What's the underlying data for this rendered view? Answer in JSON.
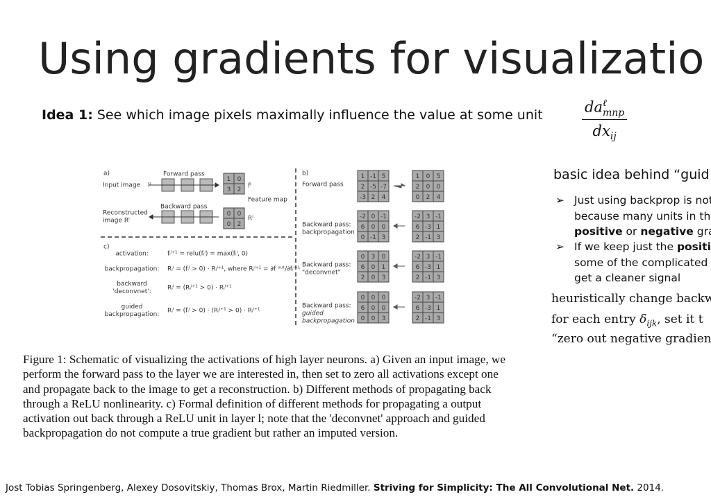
{
  "title": "Using gradients for visualizatio",
  "idea": {
    "label": "Idea 1:",
    "text": "See which image pixels maximally influence the value at some unit",
    "formula": {
      "numerator": {
        "base": "da",
        "sup": "ℓ",
        "sub": "mnp"
      },
      "denominator": {
        "base": "dx",
        "sub": "ij"
      }
    }
  },
  "figure": {
    "a": {
      "label": "a)",
      "forward": "Forward pass",
      "input": "Input image",
      "input_symbol": "Iˡ",
      "feature_symbol": "fˡ",
      "feature_map_label": "Feature map",
      "feature_map": [
        [
          1,
          0
        ],
        [
          3,
          2
        ]
      ],
      "backward": "Backward pass",
      "reconstructed": [
        "Reconstructed",
        "image Rˡ"
      ],
      "recon_symbol": "Rˡ",
      "reconstruction": [
        [
          0,
          0
        ],
        [
          0,
          2
        ]
      ]
    },
    "b": {
      "label": "b)",
      "rows": [
        {
          "label": [
            "Forward pass"
          ],
          "input": [
            [
              1,
              -1,
              5
            ],
            [
              2,
              -5,
              -7
            ],
            [
              -3,
              2,
              4
            ]
          ],
          "output": [
            [
              1,
              0,
              5
            ],
            [
              2,
              0,
              0
            ],
            [
              0,
              2,
              4
            ]
          ]
        },
        {
          "label": [
            "Backward pass:",
            "backpropagation"
          ],
          "input": [
            [
              -2,
              0,
              -1
            ],
            [
              6,
              0,
              0
            ],
            [
              0,
              -1,
              3
            ]
          ],
          "output": [
            [
              -2,
              3,
              -1
            ],
            [
              6,
              -3,
              1
            ],
            [
              2,
              -1,
              3
            ]
          ]
        },
        {
          "label": [
            "Backward pass:",
            "\"deconvnet\""
          ],
          "input": [
            [
              0,
              3,
              0
            ],
            [
              6,
              0,
              1
            ],
            [
              2,
              0,
              3
            ]
          ],
          "output": [
            [
              -2,
              3,
              -1
            ],
            [
              6,
              -3,
              1
            ],
            [
              2,
              -1,
              3
            ]
          ]
        },
        {
          "label": [
            "Backward pass:",
            "guided",
            "backpropagation"
          ],
          "input": [
            [
              0,
              0,
              0
            ],
            [
              6,
              0,
              0
            ],
            [
              0,
              0,
              3
            ]
          ],
          "output": [
            [
              -2,
              3,
              -1
            ],
            [
              6,
              -3,
              1
            ],
            [
              2,
              -1,
              3
            ]
          ]
        }
      ]
    },
    "c": {
      "label": "c)",
      "rows": [
        {
          "label": [
            "activation:"
          ],
          "formula": "fᵢˡ⁺¹ = relu(fᵢˡ) = max(fᵢˡ, 0)"
        },
        {
          "label": [
            "backpropagation:"
          ],
          "formula": "Rᵢˡ = (fᵢˡ > 0) · Rᵢˡ⁺¹, where Rᵢˡ⁺¹ = ∂f ᵒᵘᵗ/∂fᵢˡ⁺¹"
        },
        {
          "label": [
            "backward",
            "'deconvnet':"
          ],
          "formula": "Rᵢˡ = (Rᵢˡ⁺¹ > 0) · Rᵢˡ⁺¹"
        },
        {
          "label": [
            "guided",
            "backpropagation:"
          ],
          "formula": "Rᵢˡ = (fᵢˡ > 0) · (Rᵢˡ⁺¹ > 0) · Rᵢˡ⁺¹"
        }
      ]
    }
  },
  "caption": [
    "Figure 1: Schematic of visualizing the activations of high layer neurons. a) Given an input image, we",
    "perform the forward pass to the layer we are interested in, then set to zero all activations except one",
    "and propagate back to the image to get a reconstruction. b) Different methods of propagating back",
    "through a ReLU nonlinearity.  c) Formal definition of different methods for propagating a output",
    "activation out back through a ReLU unit in layer l; note that the 'deconvnet' approach and guided",
    "backpropagation do not compute a true gradient but rather an imputed version."
  ],
  "side": {
    "heading": "basic idea behind “guid",
    "bullets": [
      [
        "Just using backprop is not",
        "because many units in the",
        [
          {
            "text": "positive",
            "bold": true
          },
          " or ",
          {
            "text": "negative",
            "bold": true
          },
          " gradie"
        ]
      ],
      [
        [
          "If we keep just the ",
          {
            "text": "positive",
            "bold": true
          }
        ],
        "some of the complicated n",
        "get a cleaner signal"
      ]
    ],
    "notes": [
      "heuristically change backw",
      [
        "for each entry ",
        {
          "text": "δ",
          "sub": "ijk",
          "italic": true
        },
        ", set it t"
      ],
      "“zero out negative gradient"
    ]
  },
  "citation": [
    "Jost Tobias Springenberg, Alexey Dosovitskiy, Thomas Brox, Martin Riedmiller. ",
    {
      "text": "Striving for Simplicity: The All Convolutional Net.",
      "bold": true
    },
    " 2014."
  ]
}
